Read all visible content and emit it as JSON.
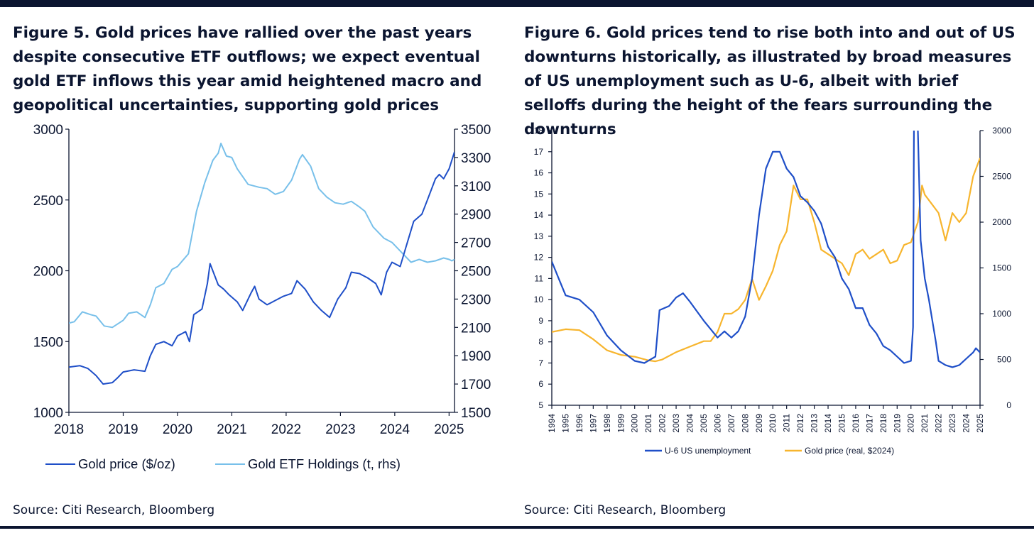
{
  "colors": {
    "navy": "#0b1530",
    "dark_blue": "#1f4fc8",
    "light_blue": "#78c0ea",
    "gold": "#f7b52e"
  },
  "figure5": {
    "title": "Figure 5. Gold prices have rallied over the past years despite consecutive ETF outflows; we expect eventual gold ETF inflows this year amid heightened macro and geopolitical uncertainties, supporting gold prices",
    "source": "Source: Citi Research, Bloomberg",
    "legend": [
      "Gold price ($/oz)",
      "Gold ETF Holdings (t, rhs)"
    ]
  },
  "figure6": {
    "title": "Figure 6. Gold prices tend to rise both into and out of US downturns historically, as illustrated by broad measures of US unemployment such as U-6, albeit with brief selloffs during the height of the fears surrounding the downturns",
    "source": "Source: Citi Research, Bloomberg",
    "legend": [
      "U-6 US unemployment",
      "Gold price (real, $2024)"
    ]
  },
  "chart_data": [
    {
      "type": "line",
      "title": "Figure 5. Gold prices have rallied over the past years despite consecutive ETF outflows; we expect eventual gold ETF inflows this year amid heightened macro and geopolitical uncertainties, supporting gold prices",
      "xlabel": "",
      "ylabel": "",
      "xlim": [
        2018,
        2025.1
      ],
      "ylim": [
        1000,
        3000
      ],
      "y2lim": [
        1500,
        3500
      ],
      "x_ticks": [
        2018,
        2019,
        2020,
        2021,
        2022,
        2023,
        2024,
        2025
      ],
      "y_ticks": [
        1000,
        1500,
        2000,
        2500,
        3000
      ],
      "y2_ticks": [
        1500,
        1700,
        1900,
        2100,
        2300,
        2500,
        2700,
        2900,
        3100,
        3300,
        3500
      ],
      "grid": false,
      "legend_position": "bottom",
      "series": [
        {
          "name": "Gold price ($/oz)",
          "axis": "left",
          "color": "#1f4fc8",
          "x": [
            2018.0,
            2018.2,
            2018.35,
            2018.5,
            2018.63,
            2018.8,
            2018.9,
            2019.0,
            2019.2,
            2019.4,
            2019.5,
            2019.6,
            2019.75,
            2019.9,
            2020.0,
            2020.15,
            2020.22,
            2020.3,
            2020.45,
            2020.55,
            2020.6,
            2020.75,
            2020.85,
            2020.95,
            2021.1,
            2021.2,
            2021.35,
            2021.42,
            2021.5,
            2021.65,
            2021.8,
            2021.95,
            2022.1,
            2022.2,
            2022.35,
            2022.5,
            2022.65,
            2022.8,
            2022.95,
            2023.1,
            2023.2,
            2023.35,
            2023.5,
            2023.65,
            2023.75,
            2023.85,
            2023.95,
            2024.1,
            2024.2,
            2024.35,
            2024.5,
            2024.6,
            2024.75,
            2024.82,
            2024.9,
            2025.0,
            2025.05,
            2025.1
          ],
          "y": [
            1320,
            1330,
            1310,
            1260,
            1200,
            1210,
            1245,
            1285,
            1300,
            1290,
            1400,
            1480,
            1500,
            1470,
            1540,
            1570,
            1500,
            1690,
            1730,
            1910,
            2050,
            1900,
            1870,
            1830,
            1780,
            1720,
            1840,
            1890,
            1800,
            1760,
            1790,
            1820,
            1840,
            1930,
            1870,
            1780,
            1720,
            1670,
            1800,
            1880,
            1990,
            1980,
            1950,
            1910,
            1830,
            1990,
            2060,
            2030,
            2160,
            2350,
            2400,
            2500,
            2650,
            2680,
            2650,
            2720,
            2780,
            2840
          ]
        },
        {
          "name": "Gold ETF Holdings (t, rhs)",
          "axis": "right",
          "color": "#78c0ea",
          "x": [
            2018.0,
            2018.1,
            2018.25,
            2018.4,
            2018.5,
            2018.65,
            2018.8,
            2019.0,
            2019.1,
            2019.25,
            2019.4,
            2019.5,
            2019.6,
            2019.75,
            2019.9,
            2020.0,
            2020.2,
            2020.35,
            2020.5,
            2020.65,
            2020.75,
            2020.8,
            2020.9,
            2021.0,
            2021.1,
            2021.3,
            2021.5,
            2021.65,
            2021.8,
            2021.95,
            2022.1,
            2022.25,
            2022.3,
            2022.45,
            2022.6,
            2022.75,
            2022.9,
            2023.05,
            2023.2,
            2023.35,
            2023.45,
            2023.6,
            2023.8,
            2023.95,
            2024.15,
            2024.3,
            2024.45,
            2024.6,
            2024.75,
            2024.9,
            2025.0,
            2025.05,
            2025.1
          ],
          "y": [
            2130,
            2140,
            2210,
            2190,
            2180,
            2110,
            2100,
            2150,
            2200,
            2210,
            2170,
            2260,
            2380,
            2410,
            2510,
            2530,
            2620,
            2920,
            3120,
            3280,
            3330,
            3400,
            3310,
            3300,
            3220,
            3110,
            3090,
            3080,
            3040,
            3060,
            3140,
            3290,
            3320,
            3240,
            3080,
            3020,
            2980,
            2970,
            2990,
            2950,
            2920,
            2810,
            2730,
            2700,
            2620,
            2560,
            2580,
            2560,
            2570,
            2590,
            2580,
            2570,
            2580
          ]
        }
      ]
    },
    {
      "type": "line",
      "title": "Figure 6. Gold prices tend to rise both into and out of US downturns historically, as illustrated by broad measures of US unemployment such as U-6, albeit with brief selloffs during the height of the fears surrounding the downturns",
      "xlabel": "",
      "ylabel": "",
      "xlim": [
        1994,
        2025
      ],
      "ylim": [
        5,
        18
      ],
      "y2lim": [
        0,
        3000
      ],
      "x_ticks": [
        1994,
        1995,
        1996,
        1997,
        1998,
        1999,
        2000,
        2001,
        2002,
        2003,
        2004,
        2005,
        2006,
        2007,
        2008,
        2009,
        2010,
        2011,
        2012,
        2013,
        2014,
        2015,
        2016,
        2017,
        2018,
        2019,
        2020,
        2021,
        2022,
        2023,
        2024,
        2025
      ],
      "y_ticks": [
        5,
        6,
        7,
        8,
        9,
        10,
        11,
        12,
        13,
        14,
        15,
        16,
        17,
        18
      ],
      "y2_ticks": [
        0,
        500,
        1000,
        1500,
        2000,
        2500,
        3000
      ],
      "grid": false,
      "legend_position": "bottom",
      "series": [
        {
          "name": "U-6 US unemployment",
          "axis": "left",
          "color": "#1f4fc8",
          "x": [
            1994.0,
            1994.5,
            1995.0,
            1996.0,
            1997.0,
            1998.0,
            1999.0,
            2000.0,
            2000.7,
            2001.5,
            2001.8,
            2002.5,
            2003.0,
            2003.5,
            2004.0,
            2005.0,
            2006.0,
            2006.5,
            2007.0,
            2007.5,
            2008.0,
            2008.5,
            2009.0,
            2009.5,
            2010.0,
            2010.5,
            2011.0,
            2011.5,
            2012.0,
            2012.5,
            2013.0,
            2013.5,
            2014.0,
            2014.5,
            2015.0,
            2015.5,
            2016.0,
            2016.5,
            2017.0,
            2017.5,
            2018.0,
            2018.5,
            2019.0,
            2019.5,
            2020.0,
            2020.15,
            2020.25,
            2020.33,
            2020.5,
            2020.7,
            2021.0,
            2021.3,
            2021.5,
            2021.8,
            2022.0,
            2022.5,
            2023.0,
            2023.5,
            2024.0,
            2024.5,
            2024.7,
            2025.0
          ],
          "y": [
            11.8,
            11.0,
            10.2,
            10.0,
            9.4,
            8.3,
            7.6,
            7.1,
            7.0,
            7.3,
            9.5,
            9.7,
            10.1,
            10.3,
            9.9,
            9.0,
            8.2,
            8.5,
            8.2,
            8.5,
            9.2,
            11.0,
            14.0,
            16.2,
            17.0,
            17.0,
            16.2,
            15.8,
            14.9,
            14.6,
            14.2,
            13.6,
            12.5,
            12.0,
            11.0,
            10.5,
            9.6,
            9.6,
            8.8,
            8.4,
            7.8,
            7.6,
            7.3,
            7.0,
            7.1,
            8.7,
            22.9,
            22.8,
            18.0,
            12.8,
            11.0,
            10.0,
            9.2,
            8.0,
            7.1,
            6.9,
            6.8,
            6.9,
            7.2,
            7.5,
            7.7,
            7.5
          ]
        },
        {
          "name": "Gold price (real, $2024)",
          "axis": "right",
          "color": "#f7b52e",
          "x": [
            1994.0,
            1995.0,
            1996.0,
            1997.0,
            1998.0,
            1999.0,
            2000.0,
            2001.0,
            2001.5,
            2002.0,
            2003.0,
            2004.0,
            2005.0,
            2005.5,
            2006.0,
            2006.5,
            2007.0,
            2007.5,
            2008.0,
            2008.5,
            2009.0,
            2009.5,
            2010.0,
            2010.5,
            2011.0,
            2011.5,
            2012.0,
            2012.5,
            2013.0,
            2013.5,
            2014.0,
            2015.0,
            2015.5,
            2016.0,
            2016.5,
            2017.0,
            2018.0,
            2018.5,
            2019.0,
            2019.5,
            2020.0,
            2020.5,
            2020.8,
            2021.0,
            2021.5,
            2022.0,
            2022.5,
            2023.0,
            2023.5,
            2024.0,
            2024.5,
            2025.0
          ],
          "y": [
            800,
            830,
            820,
            720,
            600,
            550,
            530,
            490,
            480,
            500,
            580,
            640,
            700,
            700,
            800,
            1000,
            1000,
            1050,
            1150,
            1380,
            1150,
            1300,
            1470,
            1750,
            1900,
            2400,
            2250,
            2250,
            2000,
            1700,
            1650,
            1550,
            1420,
            1650,
            1700,
            1600,
            1700,
            1550,
            1580,
            1750,
            1780,
            2000,
            2400,
            2300,
            2200,
            2100,
            1800,
            2100,
            2000,
            2100,
            2500,
            2700
          ]
        }
      ]
    }
  ]
}
